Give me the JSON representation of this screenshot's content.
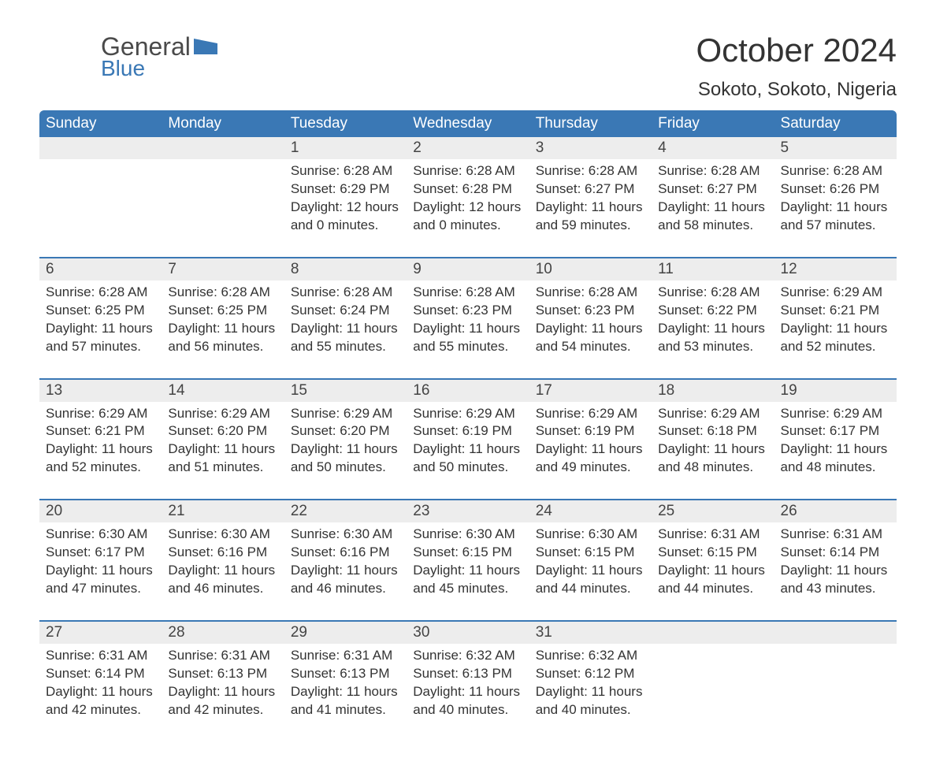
{
  "logo": {
    "word1": "General",
    "word2": "Blue",
    "tri_color": "#3a78b5"
  },
  "title": "October 2024",
  "location": "Sokoto, Sokoto, Nigeria",
  "colors": {
    "header_bg": "#3a78b5",
    "header_fg": "#ffffff",
    "daynum_bg": "#ededed",
    "row_divider": "#3a78b5",
    "text": "#333333",
    "logo_gray": "#4a4a4a",
    "logo_blue": "#3a78b5"
  },
  "fonts": {
    "title_size": 42,
    "location_size": 24,
    "header_size": 19,
    "daynum_size": 19,
    "body_size": 17
  },
  "columns": [
    "Sunday",
    "Monday",
    "Tuesday",
    "Wednesday",
    "Thursday",
    "Friday",
    "Saturday"
  ],
  "weeks": [
    [
      {
        "n": "",
        "sunrise": "",
        "sunset": "",
        "daylight": ""
      },
      {
        "n": "",
        "sunrise": "",
        "sunset": "",
        "daylight": ""
      },
      {
        "n": "1",
        "sunrise": "6:28 AM",
        "sunset": "6:29 PM",
        "daylight": "12 hours and 0 minutes."
      },
      {
        "n": "2",
        "sunrise": "6:28 AM",
        "sunset": "6:28 PM",
        "daylight": "12 hours and 0 minutes."
      },
      {
        "n": "3",
        "sunrise": "6:28 AM",
        "sunset": "6:27 PM",
        "daylight": "11 hours and 59 minutes."
      },
      {
        "n": "4",
        "sunrise": "6:28 AM",
        "sunset": "6:27 PM",
        "daylight": "11 hours and 58 minutes."
      },
      {
        "n": "5",
        "sunrise": "6:28 AM",
        "sunset": "6:26 PM",
        "daylight": "11 hours and 57 minutes."
      }
    ],
    [
      {
        "n": "6",
        "sunrise": "6:28 AM",
        "sunset": "6:25 PM",
        "daylight": "11 hours and 57 minutes."
      },
      {
        "n": "7",
        "sunrise": "6:28 AM",
        "sunset": "6:25 PM",
        "daylight": "11 hours and 56 minutes."
      },
      {
        "n": "8",
        "sunrise": "6:28 AM",
        "sunset": "6:24 PM",
        "daylight": "11 hours and 55 minutes."
      },
      {
        "n": "9",
        "sunrise": "6:28 AM",
        "sunset": "6:23 PM",
        "daylight": "11 hours and 55 minutes."
      },
      {
        "n": "10",
        "sunrise": "6:28 AM",
        "sunset": "6:23 PM",
        "daylight": "11 hours and 54 minutes."
      },
      {
        "n": "11",
        "sunrise": "6:28 AM",
        "sunset": "6:22 PM",
        "daylight": "11 hours and 53 minutes."
      },
      {
        "n": "12",
        "sunrise": "6:29 AM",
        "sunset": "6:21 PM",
        "daylight": "11 hours and 52 minutes."
      }
    ],
    [
      {
        "n": "13",
        "sunrise": "6:29 AM",
        "sunset": "6:21 PM",
        "daylight": "11 hours and 52 minutes."
      },
      {
        "n": "14",
        "sunrise": "6:29 AM",
        "sunset": "6:20 PM",
        "daylight": "11 hours and 51 minutes."
      },
      {
        "n": "15",
        "sunrise": "6:29 AM",
        "sunset": "6:20 PM",
        "daylight": "11 hours and 50 minutes."
      },
      {
        "n": "16",
        "sunrise": "6:29 AM",
        "sunset": "6:19 PM",
        "daylight": "11 hours and 50 minutes."
      },
      {
        "n": "17",
        "sunrise": "6:29 AM",
        "sunset": "6:19 PM",
        "daylight": "11 hours and 49 minutes."
      },
      {
        "n": "18",
        "sunrise": "6:29 AM",
        "sunset": "6:18 PM",
        "daylight": "11 hours and 48 minutes."
      },
      {
        "n": "19",
        "sunrise": "6:29 AM",
        "sunset": "6:17 PM",
        "daylight": "11 hours and 48 minutes."
      }
    ],
    [
      {
        "n": "20",
        "sunrise": "6:30 AM",
        "sunset": "6:17 PM",
        "daylight": "11 hours and 47 minutes."
      },
      {
        "n": "21",
        "sunrise": "6:30 AM",
        "sunset": "6:16 PM",
        "daylight": "11 hours and 46 minutes."
      },
      {
        "n": "22",
        "sunrise": "6:30 AM",
        "sunset": "6:16 PM",
        "daylight": "11 hours and 46 minutes."
      },
      {
        "n": "23",
        "sunrise": "6:30 AM",
        "sunset": "6:15 PM",
        "daylight": "11 hours and 45 minutes."
      },
      {
        "n": "24",
        "sunrise": "6:30 AM",
        "sunset": "6:15 PM",
        "daylight": "11 hours and 44 minutes."
      },
      {
        "n": "25",
        "sunrise": "6:31 AM",
        "sunset": "6:15 PM",
        "daylight": "11 hours and 44 minutes."
      },
      {
        "n": "26",
        "sunrise": "6:31 AM",
        "sunset": "6:14 PM",
        "daylight": "11 hours and 43 minutes."
      }
    ],
    [
      {
        "n": "27",
        "sunrise": "6:31 AM",
        "sunset": "6:14 PM",
        "daylight": "11 hours and 42 minutes."
      },
      {
        "n": "28",
        "sunrise": "6:31 AM",
        "sunset": "6:13 PM",
        "daylight": "11 hours and 42 minutes."
      },
      {
        "n": "29",
        "sunrise": "6:31 AM",
        "sunset": "6:13 PM",
        "daylight": "11 hours and 41 minutes."
      },
      {
        "n": "30",
        "sunrise": "6:32 AM",
        "sunset": "6:13 PM",
        "daylight": "11 hours and 40 minutes."
      },
      {
        "n": "31",
        "sunrise": "6:32 AM",
        "sunset": "6:12 PM",
        "daylight": "11 hours and 40 minutes."
      },
      {
        "n": "",
        "sunrise": "",
        "sunset": "",
        "daylight": ""
      },
      {
        "n": "",
        "sunrise": "",
        "sunset": "",
        "daylight": ""
      }
    ]
  ],
  "labels": {
    "sunrise": "Sunrise:",
    "sunset": "Sunset:",
    "daylight": "Daylight:"
  }
}
